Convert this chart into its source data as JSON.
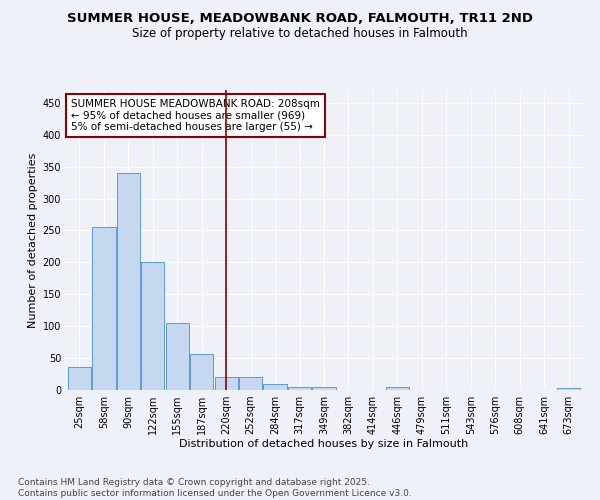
{
  "title_line1": "SUMMER HOUSE, MEADOWBANK ROAD, FALMOUTH, TR11 2ND",
  "title_line2": "Size of property relative to detached houses in Falmouth",
  "xlabel": "Distribution of detached houses by size in Falmouth",
  "ylabel": "Number of detached properties",
  "categories": [
    "25sqm",
    "58sqm",
    "90sqm",
    "122sqm",
    "155sqm",
    "187sqm",
    "220sqm",
    "252sqm",
    "284sqm",
    "317sqm",
    "349sqm",
    "382sqm",
    "414sqm",
    "446sqm",
    "479sqm",
    "511sqm",
    "543sqm",
    "576sqm",
    "608sqm",
    "641sqm",
    "673sqm"
  ],
  "values": [
    36,
    255,
    340,
    200,
    105,
    57,
    20,
    20,
    10,
    5,
    4,
    0,
    0,
    4,
    0,
    0,
    0,
    0,
    0,
    0,
    3
  ],
  "bar_color": "#c5d8f0",
  "bar_edge_color": "#5b9bd5",
  "vline_x_index": 6,
  "vline_color": "#8b0000",
  "annotation_text": "SUMMER HOUSE MEADOWBANK ROAD: 208sqm\n← 95% of detached houses are smaller (969)\n5% of semi-detached houses are larger (55) →",
  "annotation_box_color": "white",
  "annotation_box_edge_color": "#8b0000",
  "ylim": [
    0,
    470
  ],
  "yticks": [
    0,
    50,
    100,
    150,
    200,
    250,
    300,
    350,
    400,
    450
  ],
  "background_color": "#eef2f8",
  "footer_text": "Contains HM Land Registry data © Crown copyright and database right 2025.\nContains public sector information licensed under the Open Government Licence v3.0.",
  "title_fontsize": 9.5,
  "subtitle_fontsize": 8.5,
  "axis_label_fontsize": 8,
  "tick_fontsize": 7,
  "annotation_fontsize": 7.5,
  "footer_fontsize": 6.5
}
